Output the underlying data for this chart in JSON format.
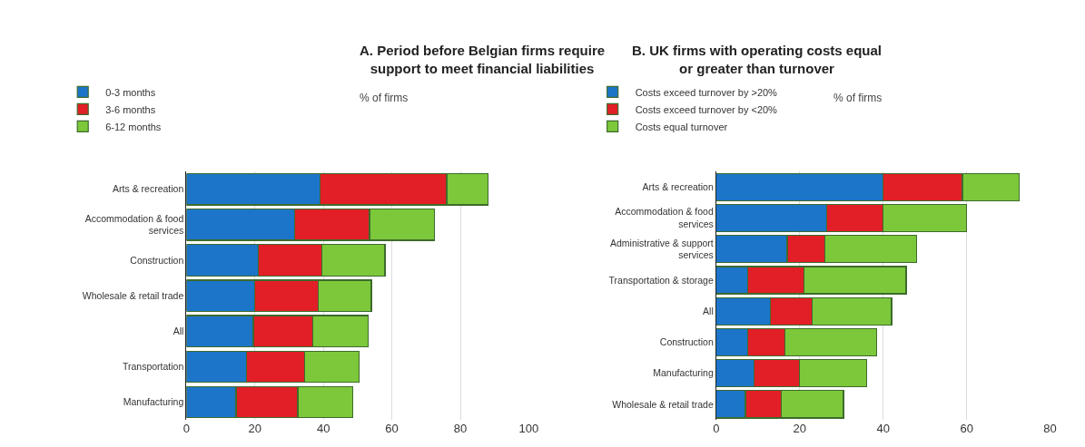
{
  "chart_data": [
    {
      "type": "bar",
      "orientation": "horizontal",
      "stacked": true,
      "title": "A. Period before Belgian firms require\nsupport to meet financial liabilities",
      "subtitle": "% of firms",
      "categories": [
        "Arts & recreation",
        "Accommodation & food services",
        "Construction",
        "Wholesale & retail trade",
        "All",
        "Transportation",
        "Manufacturing"
      ],
      "series": [
        {
          "name": "0-3 months",
          "color": "#1c75c8",
          "values": [
            39,
            31.5,
            21,
            20,
            19.5,
            17.5,
            14.5
          ]
        },
        {
          "name": "3-6 months",
          "color": "#e21f26",
          "values": [
            37,
            22,
            18.5,
            18.5,
            17.5,
            17,
            18
          ]
        },
        {
          "name": "6-12 months",
          "color": "#7cc83a",
          "values": [
            12,
            19,
            18.5,
            15.5,
            16,
            16,
            16
          ]
        }
      ],
      "xlim": [
        0,
        100
      ],
      "xticks": [
        0,
        20,
        40,
        60,
        80,
        100
      ],
      "grid": "x",
      "legend": "top left"
    },
    {
      "type": "bar",
      "orientation": "horizontal",
      "stacked": true,
      "title": "B. UK firms with operating costs equal\nor greater than turnover",
      "subtitle": "% of firms",
      "categories": [
        "Arts & recreation",
        "Accommodation & food services",
        "Administrative & support services",
        "Transportation & storage",
        "All",
        "Construction",
        "Manufacturing",
        "Wholesale & retail trade"
      ],
      "series": [
        {
          "name": "Costs exceed turnover by >20%",
          "color": "#1c75c8",
          "values": [
            40,
            26.5,
            17,
            7.5,
            13,
            7.5,
            9,
            7
          ]
        },
        {
          "name": "Costs exceed turnover by <20%",
          "color": "#e21f26",
          "values": [
            19,
            13.5,
            9,
            13.5,
            10,
            9,
            11,
            8.5
          ]
        },
        {
          "name": "Costs equal turnover",
          "color": "#7cc83a",
          "values": [
            13.5,
            20,
            22,
            24.5,
            19,
            22,
            16,
            15
          ]
        }
      ],
      "xlim": [
        0,
        80
      ],
      "xticks": [
        0,
        20,
        40,
        60,
        80
      ],
      "grid": "x",
      "legend": "top left"
    }
  ]
}
